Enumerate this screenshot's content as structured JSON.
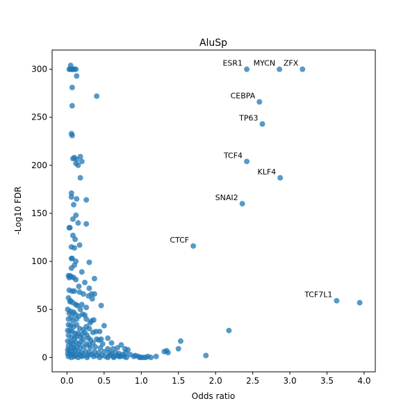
{
  "chart_data": {
    "type": "scatter",
    "title": "AluSp",
    "xlabel": "Odds ratio",
    "ylabel": "-Log10 FDR",
    "xlim": [
      -0.2,
      4.15
    ],
    "ylim": [
      -15,
      320
    ],
    "xticks": [
      0.0,
      0.5,
      1.0,
      1.5,
      2.0,
      2.5,
      3.0,
      3.5,
      4.0
    ],
    "xtick_labels": [
      "0.0",
      "0.5",
      "1.0",
      "1.5",
      "2.0",
      "2.5",
      "3.0",
      "3.5",
      "4.0"
    ],
    "yticks": [
      0,
      50,
      100,
      150,
      200,
      250,
      300
    ],
    "ytick_labels": [
      "0",
      "50",
      "100",
      "150",
      "200",
      "250",
      "300"
    ],
    "grid": false,
    "point_color": "#1f77b4",
    "point_alpha": 0.75,
    "labeled_points": [
      {
        "label": "ESR1",
        "x": 2.42,
        "y": 300
      },
      {
        "label": "MYCN",
        "x": 2.86,
        "y": 300
      },
      {
        "label": "ZFX",
        "x": 3.17,
        "y": 300
      },
      {
        "label": "CEBPA",
        "x": 2.59,
        "y": 266
      },
      {
        "label": "TP63",
        "x": 2.63,
        "y": 243
      },
      {
        "label": "TCF4",
        "x": 2.42,
        "y": 204
      },
      {
        "label": "KLF4",
        "x": 2.87,
        "y": 187
      },
      {
        "label": "SNAI2",
        "x": 2.36,
        "y": 160
      },
      {
        "label": "CTCF",
        "x": 1.7,
        "y": 116
      },
      {
        "label": "TCF7L1",
        "x": 3.63,
        "y": 59
      }
    ],
    "points": [
      [
        0.05,
        304
      ],
      [
        0.04,
        300
      ],
      [
        0.06,
        300
      ],
      [
        0.08,
        300
      ],
      [
        0.1,
        300
      ],
      [
        0.12,
        300
      ],
      [
        0.07,
        300
      ],
      [
        0.03,
        300
      ],
      [
        0.13,
        293
      ],
      [
        0.07,
        281
      ],
      [
        0.4,
        272
      ],
      [
        0.07,
        262
      ],
      [
        0.06,
        233
      ],
      [
        0.07,
        231
      ],
      [
        0.18,
        209
      ],
      [
        0.1,
        208
      ],
      [
        0.08,
        207
      ],
      [
        0.13,
        206
      ],
      [
        0.2,
        204
      ],
      [
        0.12,
        202
      ],
      [
        0.15,
        200
      ],
      [
        0.18,
        187
      ],
      [
        0.06,
        171
      ],
      [
        0.06,
        167
      ],
      [
        0.13,
        165
      ],
      [
        0.26,
        164
      ],
      [
        0.09,
        159
      ],
      [
        0.12,
        148
      ],
      [
        0.08,
        144
      ],
      [
        0.15,
        140
      ],
      [
        0.26,
        139
      ],
      [
        0.04,
        135
      ],
      [
        0.03,
        135
      ],
      [
        0.08,
        127
      ],
      [
        0.11,
        123
      ],
      [
        0.06,
        115
      ],
      [
        0.17,
        117
      ],
      [
        0.1,
        114
      ],
      [
        0.06,
        103
      ],
      [
        0.07,
        103
      ],
      [
        0.12,
        100
      ],
      [
        0.3,
        99
      ],
      [
        0.1,
        96
      ],
      [
        0.06,
        93
      ],
      [
        0.2,
        89
      ],
      [
        0.02,
        85
      ],
      [
        0.04,
        85
      ],
      [
        0.06,
        84
      ],
      [
        0.09,
        83
      ],
      [
        0.03,
        83
      ],
      [
        0.37,
        82
      ],
      [
        0.12,
        81
      ],
      [
        0.24,
        78
      ],
      [
        0.3,
        72
      ],
      [
        0.03,
        70
      ],
      [
        0.07,
        69
      ],
      [
        0.1,
        69
      ],
      [
        0.17,
        68
      ],
      [
        0.16,
        74
      ],
      [
        0.22,
        66
      ],
      [
        0.33,
        66
      ],
      [
        0.37,
        66
      ],
      [
        0.29,
        64
      ],
      [
        0.34,
        61
      ],
      [
        0.02,
        62
      ],
      [
        0.04,
        58
      ],
      [
        0.05,
        59
      ],
      [
        0.08,
        57
      ],
      [
        0.12,
        55
      ],
      [
        0.14,
        54
      ],
      [
        0.2,
        55
      ],
      [
        0.46,
        54
      ],
      [
        0.26,
        52
      ],
      [
        0.18,
        50
      ],
      [
        0.01,
        50
      ],
      [
        0.03,
        46
      ],
      [
        0.05,
        48
      ],
      [
        0.09,
        47
      ],
      [
        0.11,
        45
      ],
      [
        0.16,
        43
      ],
      [
        0.21,
        45
      ],
      [
        0.24,
        44
      ],
      [
        0.02,
        40
      ],
      [
        0.06,
        42
      ],
      [
        0.08,
        38
      ],
      [
        0.13,
        40
      ],
      [
        0.26,
        40
      ],
      [
        0.33,
        38
      ],
      [
        0.31,
        36
      ],
      [
        0.36,
        39
      ],
      [
        0.02,
        34
      ],
      [
        0.05,
        33
      ],
      [
        0.09,
        32
      ],
      [
        0.13,
        34
      ],
      [
        0.17,
        30
      ],
      [
        0.26,
        32
      ],
      [
        0.3,
        30
      ],
      [
        0.5,
        33
      ],
      [
        0.22,
        29
      ],
      [
        0.01,
        28
      ],
      [
        0.04,
        28
      ],
      [
        0.07,
        27
      ],
      [
        0.11,
        25
      ],
      [
        0.15,
        25
      ],
      [
        0.2,
        24
      ],
      [
        0.24,
        26
      ],
      [
        0.35,
        26
      ],
      [
        0.39,
        27
      ],
      [
        0.44,
        27
      ],
      [
        0.27,
        23
      ],
      [
        0.02,
        23
      ],
      [
        0.06,
        21
      ],
      [
        0.1,
        20
      ],
      [
        0.13,
        22
      ],
      [
        0.18,
        21
      ],
      [
        0.22,
        19
      ],
      [
        0.29,
        20
      ],
      [
        0.32,
        18
      ],
      [
        0.4,
        19
      ],
      [
        0.46,
        19
      ],
      [
        0.55,
        20
      ],
      [
        0.43,
        18
      ],
      [
        0.01,
        17
      ],
      [
        0.05,
        16
      ],
      [
        0.08,
        15
      ],
      [
        0.12,
        16
      ],
      [
        0.16,
        14
      ],
      [
        0.19,
        16
      ],
      [
        0.26,
        14
      ],
      [
        0.3,
        13
      ],
      [
        0.35,
        15
      ],
      [
        0.48,
        14
      ],
      [
        0.6,
        15
      ],
      [
        0.73,
        13
      ],
      [
        0.02,
        12
      ],
      [
        0.06,
        11
      ],
      [
        0.09,
        10
      ],
      [
        0.13,
        11
      ],
      [
        0.18,
        10
      ],
      [
        0.23,
        11
      ],
      [
        0.31,
        10
      ],
      [
        0.38,
        11
      ],
      [
        0.45,
        10
      ],
      [
        0.55,
        9
      ],
      [
        0.62,
        9
      ],
      [
        0.68,
        10
      ],
      [
        0.78,
        9
      ],
      [
        0.82,
        8
      ],
      [
        0.01,
        8
      ],
      [
        0.03,
        7
      ],
      [
        0.07,
        6
      ],
      [
        0.11,
        7
      ],
      [
        0.15,
        6
      ],
      [
        0.2,
        5
      ],
      [
        0.25,
        6
      ],
      [
        0.3,
        5
      ],
      [
        0.37,
        6
      ],
      [
        0.43,
        5
      ],
      [
        0.5,
        6
      ],
      [
        0.57,
        5
      ],
      [
        0.6,
        4
      ],
      [
        0.65,
        5
      ],
      [
        0.7,
        4
      ],
      [
        0.75,
        3
      ],
      [
        0.79,
        5
      ],
      [
        0.85,
        3
      ],
      [
        0.01,
        4
      ],
      [
        0.04,
        3
      ],
      [
        0.08,
        3
      ],
      [
        0.12,
        2
      ],
      [
        0.17,
        3
      ],
      [
        0.22,
        2
      ],
      [
        0.28,
        2
      ],
      [
        0.33,
        3
      ],
      [
        0.4,
        2
      ],
      [
        0.47,
        2
      ],
      [
        0.52,
        1
      ],
      [
        0.58,
        2
      ],
      [
        0.63,
        1
      ],
      [
        0.68,
        2
      ],
      [
        0.72,
        1
      ],
      [
        0.77,
        1
      ],
      [
        0.9,
        1
      ],
      [
        0.92,
        2
      ],
      [
        0.96,
        1
      ],
      [
        0.98,
        0
      ],
      [
        1.0,
        0
      ],
      [
        1.03,
        0
      ],
      [
        1.06,
        0
      ],
      [
        1.09,
        1
      ],
      [
        1.13,
        0
      ],
      [
        1.2,
        1
      ],
      [
        0.02,
        1
      ],
      [
        0.06,
        0
      ],
      [
        0.1,
        1
      ],
      [
        0.15,
        0
      ],
      [
        0.2,
        1
      ],
      [
        0.27,
        0
      ],
      [
        0.36,
        1
      ],
      [
        0.44,
        0
      ],
      [
        0.55,
        0
      ],
      [
        0.63,
        0
      ],
      [
        0.7,
        1
      ],
      [
        0.8,
        0
      ],
      [
        1.31,
        6
      ],
      [
        1.34,
        7
      ],
      [
        1.36,
        5
      ],
      [
        1.5,
        9
      ],
      [
        1.53,
        17
      ],
      [
        1.87,
        2
      ],
      [
        2.18,
        28
      ],
      [
        3.94,
        57
      ]
    ]
  }
}
